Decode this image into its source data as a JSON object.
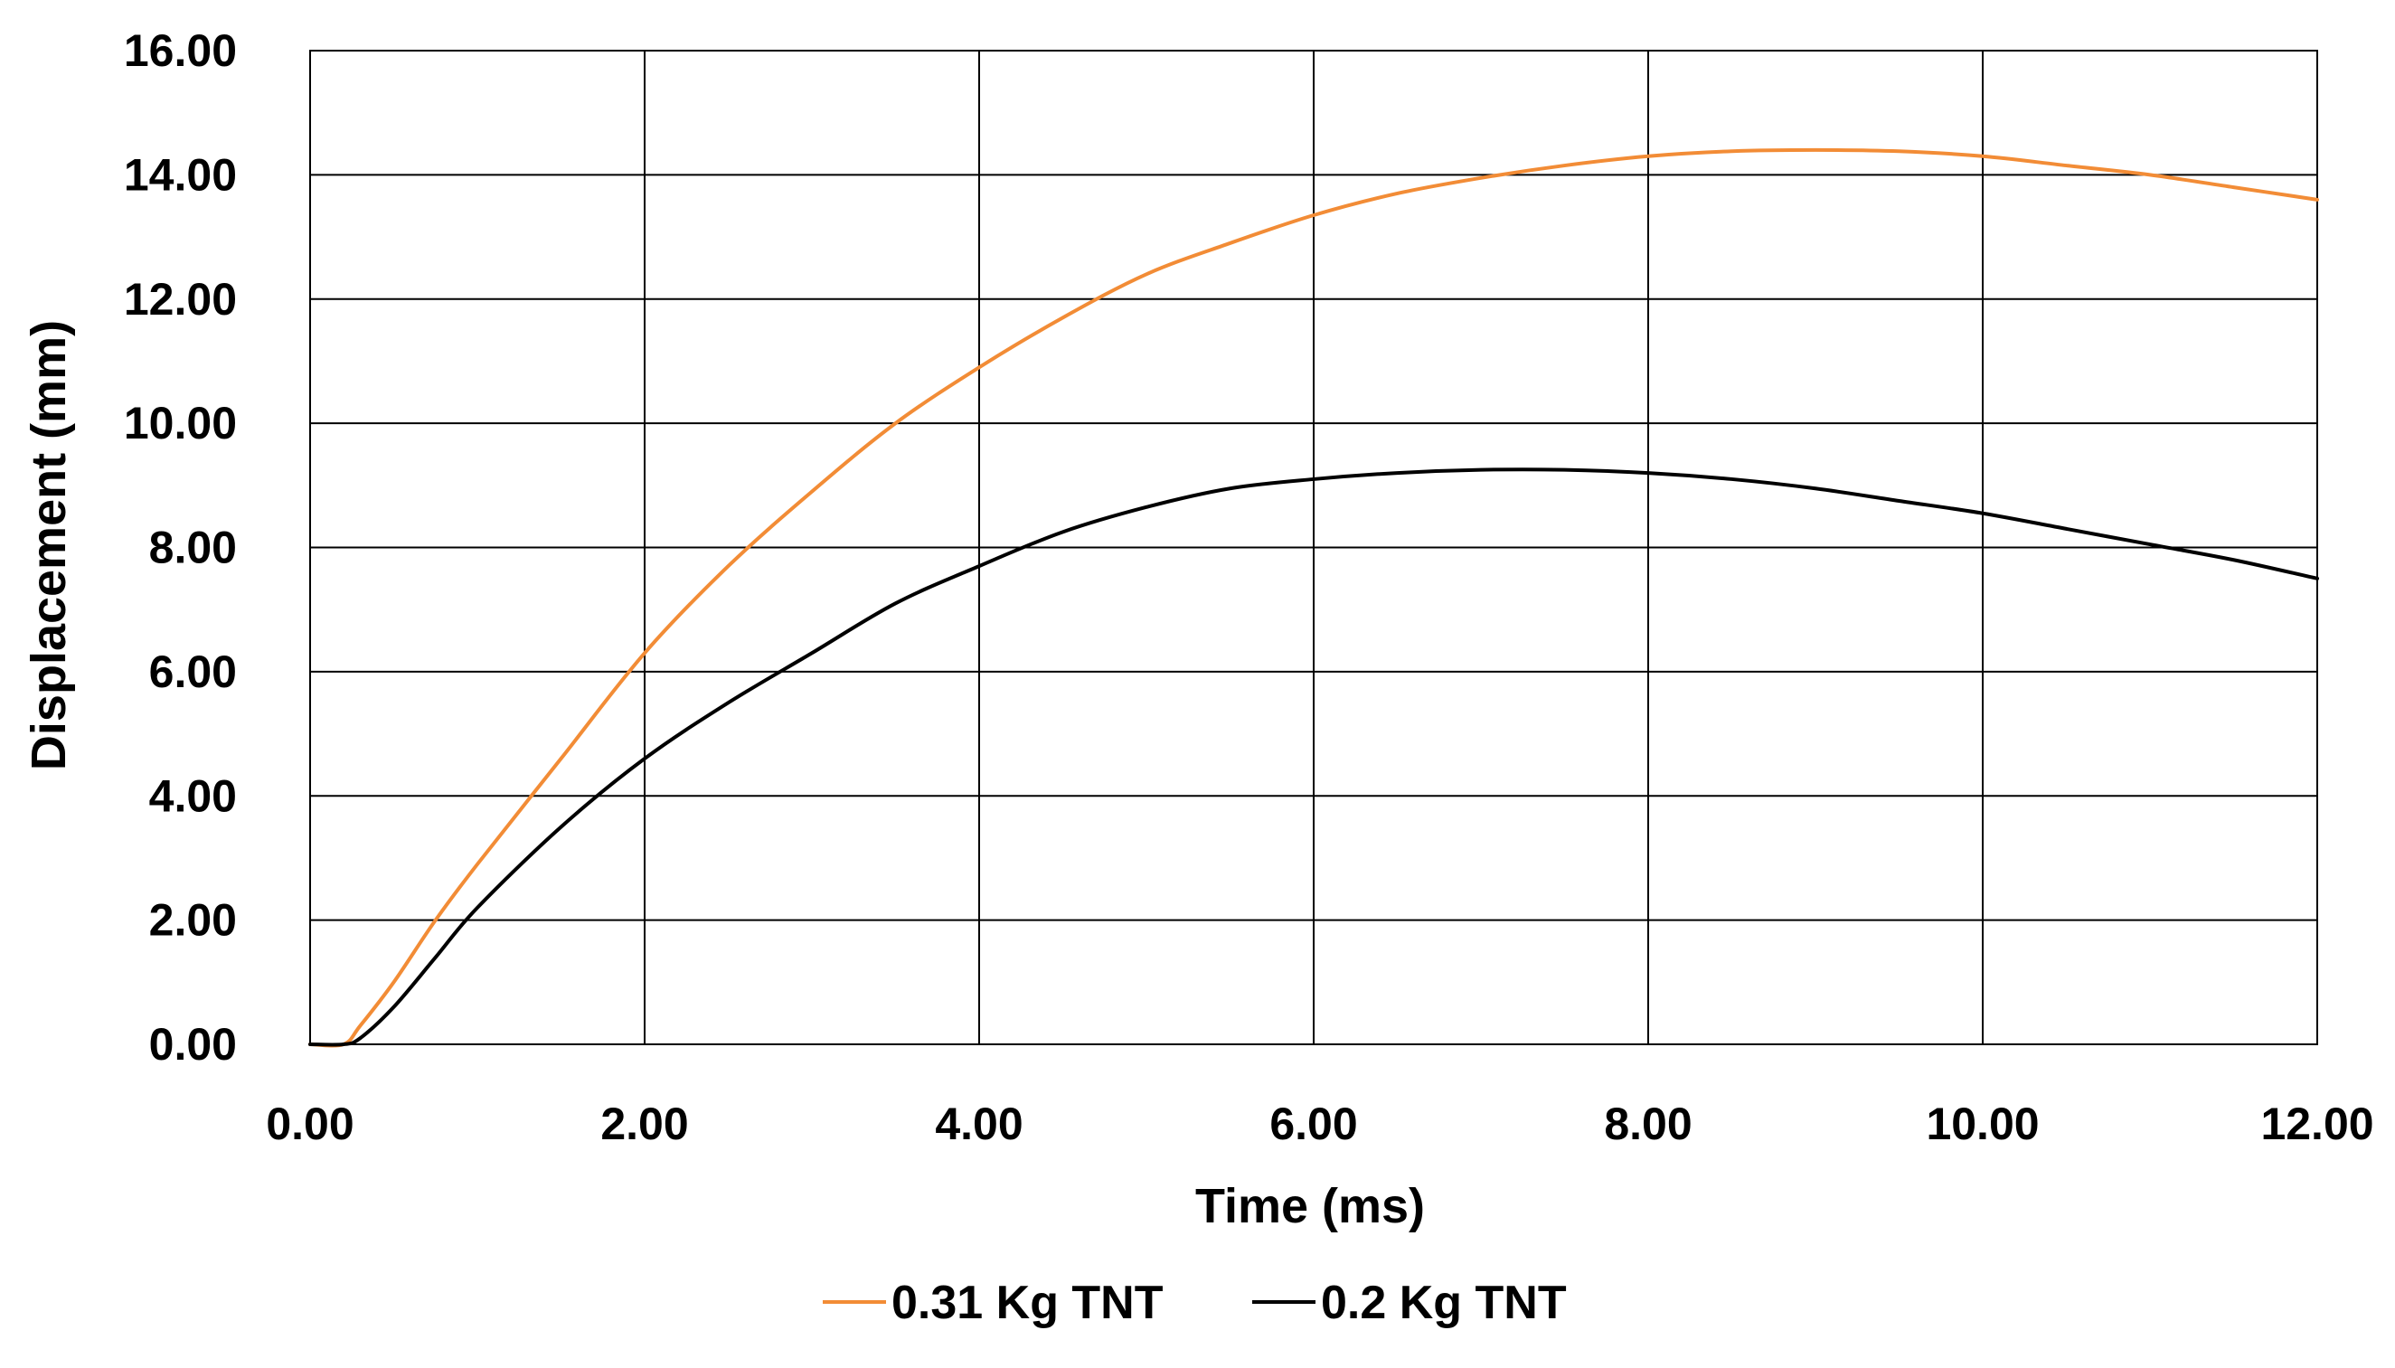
{
  "chart_data": {
    "type": "line",
    "title": "",
    "xlabel": "Time (ms)",
    "ylabel": "Displacement (mm)",
    "xlim": [
      0,
      12
    ],
    "ylim": [
      0,
      16
    ],
    "x_ticks": [
      "0.00",
      "2.00",
      "4.00",
      "6.00",
      "8.00",
      "10.00",
      "12.00"
    ],
    "y_ticks": [
      "0.00",
      "2.00",
      "4.00",
      "6.00",
      "8.00",
      "10.00",
      "12.00",
      "14.00",
      "16.00"
    ],
    "grid": true,
    "legend_position": "bottom-center",
    "series": [
      {
        "name": "0.31 Kg TNT",
        "color": "#F28C36",
        "x": [
          0,
          0.2,
          0.3,
          0.5,
          0.75,
          1.0,
          1.5,
          2.0,
          2.5,
          3.0,
          3.5,
          4.0,
          4.5,
          5.0,
          5.5,
          6.0,
          6.5,
          7.0,
          7.5,
          8.0,
          8.5,
          9.0,
          9.5,
          10.0,
          10.5,
          11.0,
          11.5,
          12.0
        ],
        "y": [
          0.0,
          0.0,
          0.3,
          1.0,
          2.0,
          2.9,
          4.6,
          6.3,
          7.7,
          8.9,
          10.0,
          10.9,
          11.7,
          12.4,
          12.9,
          13.35,
          13.7,
          13.95,
          14.15,
          14.3,
          14.38,
          14.4,
          14.38,
          14.3,
          14.15,
          14.0,
          13.8,
          13.6
        ]
      },
      {
        "name": "0.2 Kg TNT",
        "color": "#000000",
        "x": [
          0,
          0.2,
          0.3,
          0.5,
          0.75,
          1.0,
          1.5,
          2.0,
          2.5,
          3.0,
          3.5,
          4.0,
          4.5,
          5.0,
          5.5,
          6.0,
          6.5,
          7.0,
          7.5,
          8.0,
          8.5,
          9.0,
          9.5,
          10.0,
          10.5,
          11.0,
          11.5,
          12.0
        ],
        "y": [
          0.0,
          0.0,
          0.1,
          0.6,
          1.4,
          2.2,
          3.5,
          4.6,
          5.5,
          6.3,
          7.1,
          7.7,
          8.25,
          8.65,
          8.95,
          9.1,
          9.2,
          9.25,
          9.25,
          9.2,
          9.1,
          8.95,
          8.75,
          8.55,
          8.3,
          8.05,
          7.8,
          7.5
        ]
      }
    ]
  }
}
